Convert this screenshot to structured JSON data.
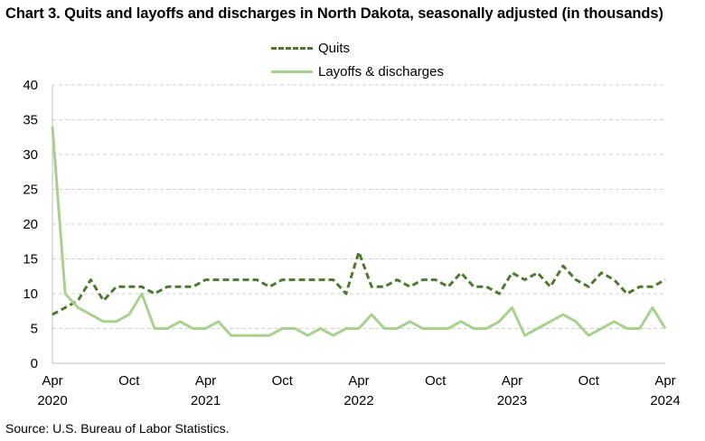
{
  "title": "Chart 3. Quits and layoffs and discharges in North Dakota, seasonally adjusted (in thousands)",
  "source": "Source: U.S. Bureau of Labor Statistics.",
  "colors": {
    "quits": "#4e7a2f",
    "layoffs": "#a9d18e",
    "grid": "#d0d0d0"
  },
  "chart_data": {
    "type": "line",
    "ylim": [
      0,
      40
    ],
    "yticks": [
      "0",
      "5",
      "10",
      "15",
      "20",
      "25",
      "30",
      "35",
      "40"
    ],
    "x_tick_labels": [
      {
        "month": "Apr",
        "year": "2020",
        "index": 0
      },
      {
        "month": "Oct",
        "year": "",
        "index": 6
      },
      {
        "month": "Apr",
        "year": "2021",
        "index": 12
      },
      {
        "month": "Oct",
        "year": "",
        "index": 18
      },
      {
        "month": "Apr",
        "year": "2022",
        "index": 24
      },
      {
        "month": "Oct",
        "year": "",
        "index": 30
      },
      {
        "month": "Apr",
        "year": "2023",
        "index": 36
      },
      {
        "month": "Oct",
        "year": "",
        "index": 42
      },
      {
        "month": "Apr",
        "year": "2024",
        "index": 48
      }
    ],
    "legend_position": "top-center",
    "grid": true,
    "series": [
      {
        "name": "Quits",
        "style": "dashed",
        "values": [
          7,
          8,
          9,
          12,
          9,
          11,
          11,
          11,
          10,
          11,
          11,
          11,
          12,
          12,
          12,
          12,
          12,
          11,
          12,
          12,
          12,
          12,
          12,
          10,
          16,
          11,
          11,
          12,
          11,
          12,
          12,
          11,
          13,
          11,
          11,
          10,
          13,
          12,
          13,
          11,
          14,
          12,
          11,
          13,
          12,
          10,
          11,
          11,
          12
        ]
      },
      {
        "name": "Layoffs & discharges",
        "style": "solid",
        "values": [
          34,
          10,
          8,
          7,
          6,
          6,
          7,
          10,
          5,
          5,
          6,
          5,
          5,
          6,
          4,
          4,
          4,
          4,
          5,
          5,
          4,
          5,
          4,
          5,
          5,
          7,
          5,
          5,
          6,
          5,
          5,
          5,
          6,
          5,
          5,
          6,
          8,
          4,
          5,
          6,
          7,
          6,
          4,
          5,
          6,
          5,
          5,
          8,
          5
        ]
      }
    ]
  }
}
